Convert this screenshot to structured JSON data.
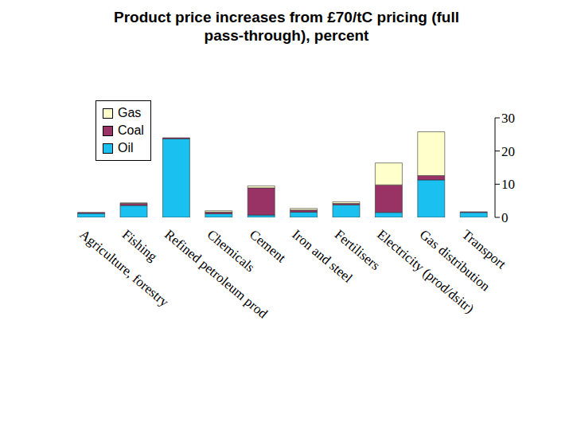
{
  "chart_data": {
    "type": "bar",
    "title": "Product price increases from £70/tC pricing (full pass-through), percent",
    "categories": [
      "Agriculture, forestry",
      "Fishing",
      "Refined petroleum prod",
      "Chemicals",
      "Cement",
      "Iron and steel",
      "Fertilisers",
      "Electricity (prod/dsitr)",
      "Gas distribution",
      "Transport"
    ],
    "series": [
      {
        "name": "Oil",
        "color": "#19c0f0",
        "values": [
          1.2,
          3.6,
          23.7,
          1.1,
          0.7,
          1.6,
          3.8,
          1.5,
          11.3,
          1.5
        ]
      },
      {
        "name": "Coal",
        "color": "#993366",
        "values": [
          0.3,
          0.6,
          0.3,
          0.5,
          8.2,
          0.6,
          0.4,
          8.3,
          1.3,
          0.2
        ]
      },
      {
        "name": "Gas",
        "color": "#ffffcc",
        "values": [
          0,
          0.2,
          0,
          0.4,
          0.6,
          0.5,
          0.5,
          6.6,
          13.2,
          0
        ]
      }
    ],
    "stacked": true,
    "ylim": [
      0,
      30
    ],
    "yticks": [
      0,
      10,
      20,
      30
    ],
    "grid": false,
    "legend": "upper left"
  }
}
